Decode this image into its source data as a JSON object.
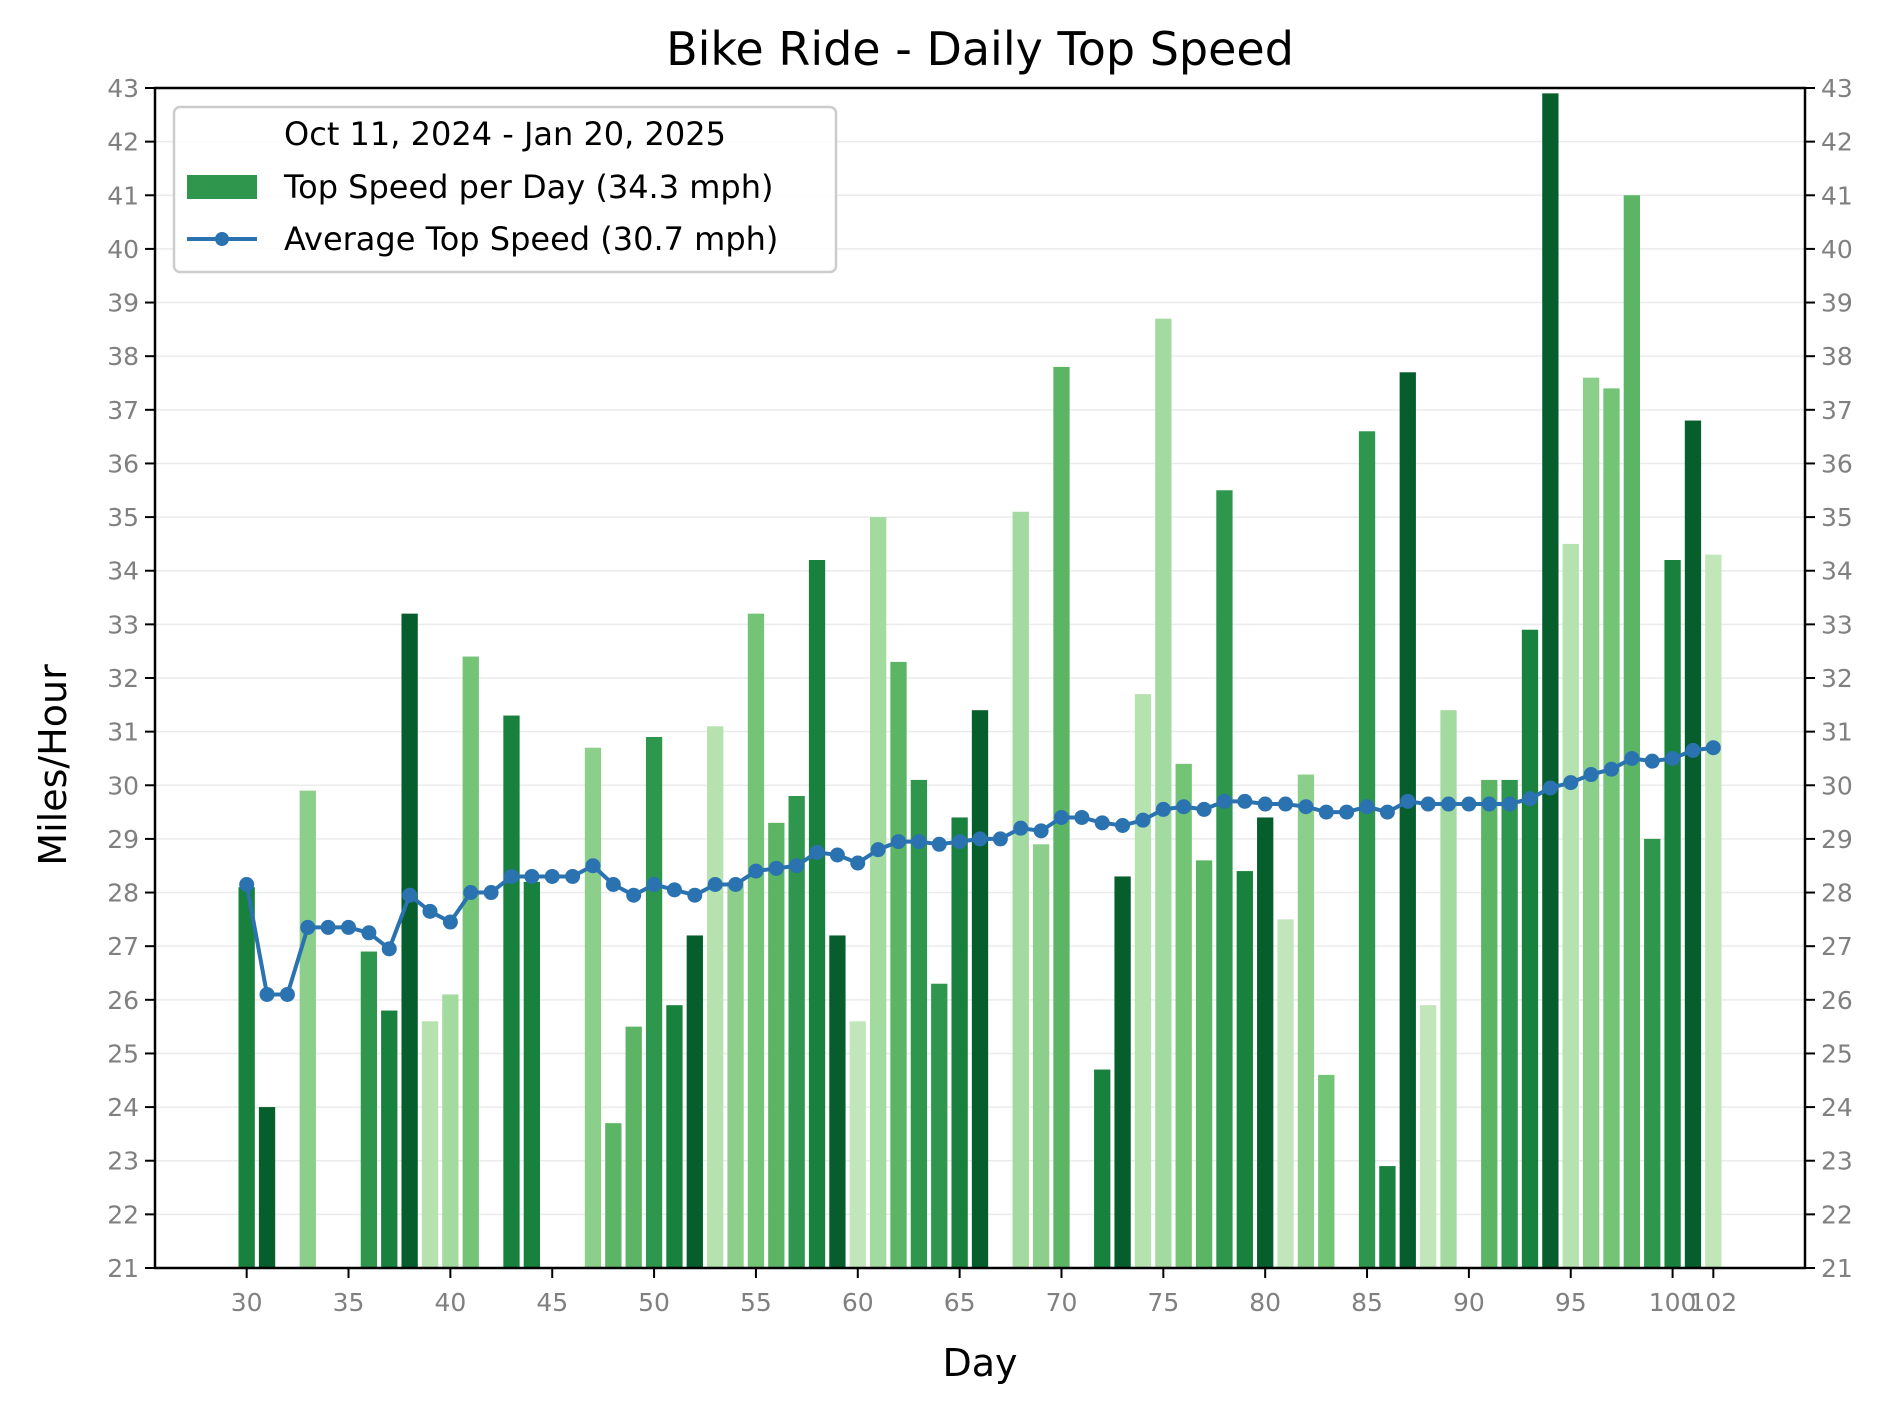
{
  "chart_data": {
    "type": "bar",
    "title": "Bike Ride - Daily Top Speed",
    "xlabel": "Day",
    "ylabel": "Miles/Hour",
    "ylim": [
      21,
      43
    ],
    "xlim": [
      25.5,
      106.5
    ],
    "yticks": [
      21,
      22,
      23,
      24,
      25,
      26,
      27,
      28,
      29,
      30,
      31,
      32,
      33,
      34,
      35,
      36,
      37,
      38,
      39,
      40,
      41,
      42,
      43
    ],
    "xticks": [
      30,
      35,
      40,
      45,
      50,
      55,
      60,
      65,
      70,
      75,
      80,
      85,
      90,
      95,
      100,
      102
    ],
    "grid": "horizontal",
    "right_axis_ticks": true,
    "legend": {
      "title": "Oct 11, 2024 - Jan 20, 2025",
      "placement": "top-left",
      "entries": [
        {
          "label": "Top Speed per Day (34.3 mph)",
          "marker": "bar",
          "color": "#2e964d"
        },
        {
          "label": "Average Top Speed (30.7 mph)",
          "marker": "line-dot",
          "color": "#2a72b0"
        }
      ]
    },
    "series": [
      {
        "name": "Top Speed per Day (34.3 mph)",
        "kind": "bar",
        "points": [
          {
            "x": 30,
            "y": 28.1,
            "color": "#17813d"
          },
          {
            "x": 31,
            "y": 24.0,
            "color": "#055e2c"
          },
          {
            "x": 33,
            "y": 29.9,
            "color": "#8ccf8a"
          },
          {
            "x": 36,
            "y": 26.9,
            "color": "#2e964d"
          },
          {
            "x": 37,
            "y": 25.8,
            "color": "#17813d"
          },
          {
            "x": 38,
            "y": 33.2,
            "color": "#055e2c"
          },
          {
            "x": 39,
            "y": 25.6,
            "color": "#b5e2ae"
          },
          {
            "x": 40,
            "y": 26.1,
            "color": "#a3daa0"
          },
          {
            "x": 41,
            "y": 32.4,
            "color": "#74c476"
          },
          {
            "x": 43,
            "y": 31.3,
            "color": "#17813d"
          },
          {
            "x": 44,
            "y": 28.2,
            "color": "#17813d"
          },
          {
            "x": 47,
            "y": 30.7,
            "color": "#8ccf8a"
          },
          {
            "x": 48,
            "y": 23.7,
            "color": "#5bb565"
          },
          {
            "x": 49,
            "y": 25.5,
            "color": "#5bb565"
          },
          {
            "x": 50,
            "y": 30.9,
            "color": "#2e964d"
          },
          {
            "x": 51,
            "y": 25.9,
            "color": "#17813d"
          },
          {
            "x": 52,
            "y": 27.2,
            "color": "#055e2c"
          },
          {
            "x": 53,
            "y": 31.1,
            "color": "#b5e2ae"
          },
          {
            "x": 54,
            "y": 28.2,
            "color": "#8ccf8a"
          },
          {
            "x": 55,
            "y": 33.2,
            "color": "#74c476"
          },
          {
            "x": 56,
            "y": 29.3,
            "color": "#5bb565"
          },
          {
            "x": 57,
            "y": 29.8,
            "color": "#2e964d"
          },
          {
            "x": 58,
            "y": 34.2,
            "color": "#17813d"
          },
          {
            "x": 59,
            "y": 27.2,
            "color": "#055e2c"
          },
          {
            "x": 60,
            "y": 25.6,
            "color": "#c1e6ba"
          },
          {
            "x": 61,
            "y": 35.0,
            "color": "#a3daa0"
          },
          {
            "x": 62,
            "y": 32.3,
            "color": "#5bb565"
          },
          {
            "x": 63,
            "y": 30.1,
            "color": "#2e964d"
          },
          {
            "x": 64,
            "y": 26.3,
            "color": "#2e964d"
          },
          {
            "x": 65,
            "y": 29.4,
            "color": "#17813d"
          },
          {
            "x": 66,
            "y": 31.4,
            "color": "#055e2c"
          },
          {
            "x": 68,
            "y": 35.1,
            "color": "#a3daa0"
          },
          {
            "x": 69,
            "y": 28.9,
            "color": "#8ccf8a"
          },
          {
            "x": 70,
            "y": 37.8,
            "color": "#5bb565"
          },
          {
            "x": 72,
            "y": 24.7,
            "color": "#17813d"
          },
          {
            "x": 73,
            "y": 28.3,
            "color": "#055e2c"
          },
          {
            "x": 74,
            "y": 31.7,
            "color": "#b5e2ae"
          },
          {
            "x": 75,
            "y": 38.7,
            "color": "#a3daa0"
          },
          {
            "x": 76,
            "y": 30.4,
            "color": "#74c476"
          },
          {
            "x": 77,
            "y": 28.6,
            "color": "#5bb565"
          },
          {
            "x": 78,
            "y": 35.5,
            "color": "#2e964d"
          },
          {
            "x": 79,
            "y": 28.4,
            "color": "#17813d"
          },
          {
            "x": 80,
            "y": 29.4,
            "color": "#055e2c"
          },
          {
            "x": 81,
            "y": 27.5,
            "color": "#c1e6ba"
          },
          {
            "x": 82,
            "y": 30.2,
            "color": "#8ccf8a"
          },
          {
            "x": 83,
            "y": 24.6,
            "color": "#74c476"
          },
          {
            "x": 85,
            "y": 36.6,
            "color": "#2e964d"
          },
          {
            "x": 86,
            "y": 22.9,
            "color": "#17813d"
          },
          {
            "x": 87,
            "y": 37.7,
            "color": "#055e2c"
          },
          {
            "x": 88,
            "y": 25.9,
            "color": "#c1e6ba"
          },
          {
            "x": 89,
            "y": 31.4,
            "color": "#a3daa0"
          },
          {
            "x": 91,
            "y": 30.1,
            "color": "#5bb565"
          },
          {
            "x": 92,
            "y": 30.1,
            "color": "#2e964d"
          },
          {
            "x": 93,
            "y": 32.9,
            "color": "#17813d"
          },
          {
            "x": 94,
            "y": 42.9,
            "color": "#055e2c"
          },
          {
            "x": 95,
            "y": 34.5,
            "color": "#b5e2ae"
          },
          {
            "x": 96,
            "y": 37.6,
            "color": "#8ccf8a"
          },
          {
            "x": 97,
            "y": 37.4,
            "color": "#74c476"
          },
          {
            "x": 98,
            "y": 41.0,
            "color": "#5bb565"
          },
          {
            "x": 99,
            "y": 29.0,
            "color": "#2e964d"
          },
          {
            "x": 100,
            "y": 34.2,
            "color": "#17813d"
          },
          {
            "x": 101,
            "y": 36.8,
            "color": "#055e2c"
          },
          {
            "x": 102,
            "y": 34.3,
            "color": "#c1e6ba"
          }
        ]
      },
      {
        "name": "Average Top Speed (30.7 mph)",
        "kind": "line",
        "color": "#2a72b0",
        "points": [
          {
            "x": 30,
            "y": 28.15
          },
          {
            "x": 31,
            "y": 26.1
          },
          {
            "x": 32,
            "y": 26.1
          },
          {
            "x": 33,
            "y": 27.35
          },
          {
            "x": 34,
            "y": 27.35
          },
          {
            "x": 35,
            "y": 27.35
          },
          {
            "x": 36,
            "y": 27.25
          },
          {
            "x": 37,
            "y": 26.95
          },
          {
            "x": 38,
            "y": 27.95
          },
          {
            "x": 39,
            "y": 27.65
          },
          {
            "x": 40,
            "y": 27.45
          },
          {
            "x": 41,
            "y": 28.0
          },
          {
            "x": 42,
            "y": 28.0
          },
          {
            "x": 43,
            "y": 28.3
          },
          {
            "x": 44,
            "y": 28.3
          },
          {
            "x": 45,
            "y": 28.3
          },
          {
            "x": 46,
            "y": 28.3
          },
          {
            "x": 47,
            "y": 28.5
          },
          {
            "x": 48,
            "y": 28.15
          },
          {
            "x": 49,
            "y": 27.95
          },
          {
            "x": 50,
            "y": 28.15
          },
          {
            "x": 51,
            "y": 28.05
          },
          {
            "x": 52,
            "y": 27.95
          },
          {
            "x": 53,
            "y": 28.15
          },
          {
            "x": 54,
            "y": 28.15
          },
          {
            "x": 55,
            "y": 28.4
          },
          {
            "x": 56,
            "y": 28.45
          },
          {
            "x": 57,
            "y": 28.5
          },
          {
            "x": 58,
            "y": 28.75
          },
          {
            "x": 59,
            "y": 28.7
          },
          {
            "x": 60,
            "y": 28.55
          },
          {
            "x": 61,
            "y": 28.8
          },
          {
            "x": 62,
            "y": 28.95
          },
          {
            "x": 63,
            "y": 28.95
          },
          {
            "x": 64,
            "y": 28.9
          },
          {
            "x": 65,
            "y": 28.95
          },
          {
            "x": 66,
            "y": 29.0
          },
          {
            "x": 67,
            "y": 29.0
          },
          {
            "x": 68,
            "y": 29.2
          },
          {
            "x": 69,
            "y": 29.15
          },
          {
            "x": 70,
            "y": 29.4
          },
          {
            "x": 71,
            "y": 29.4
          },
          {
            "x": 72,
            "y": 29.3
          },
          {
            "x": 73,
            "y": 29.25
          },
          {
            "x": 74,
            "y": 29.35
          },
          {
            "x": 75,
            "y": 29.55
          },
          {
            "x": 76,
            "y": 29.6
          },
          {
            "x": 77,
            "y": 29.55
          },
          {
            "x": 78,
            "y": 29.7
          },
          {
            "x": 79,
            "y": 29.7
          },
          {
            "x": 80,
            "y": 29.65
          },
          {
            "x": 81,
            "y": 29.65
          },
          {
            "x": 82,
            "y": 29.6
          },
          {
            "x": 83,
            "y": 29.5
          },
          {
            "x": 84,
            "y": 29.5
          },
          {
            "x": 85,
            "y": 29.6
          },
          {
            "x": 86,
            "y": 29.5
          },
          {
            "x": 87,
            "y": 29.7
          },
          {
            "x": 88,
            "y": 29.65
          },
          {
            "x": 89,
            "y": 29.65
          },
          {
            "x": 90,
            "y": 29.65
          },
          {
            "x": 91,
            "y": 29.65
          },
          {
            "x": 92,
            "y": 29.65
          },
          {
            "x": 93,
            "y": 29.75
          },
          {
            "x": 94,
            "y": 29.95
          },
          {
            "x": 95,
            "y": 30.05
          },
          {
            "x": 96,
            "y": 30.2
          },
          {
            "x": 97,
            "y": 30.3
          },
          {
            "x": 98,
            "y": 30.5
          },
          {
            "x": 99,
            "y": 30.45
          },
          {
            "x": 100,
            "y": 30.5
          },
          {
            "x": 101,
            "y": 30.65
          },
          {
            "x": 102,
            "y": 30.7
          }
        ]
      }
    ]
  }
}
